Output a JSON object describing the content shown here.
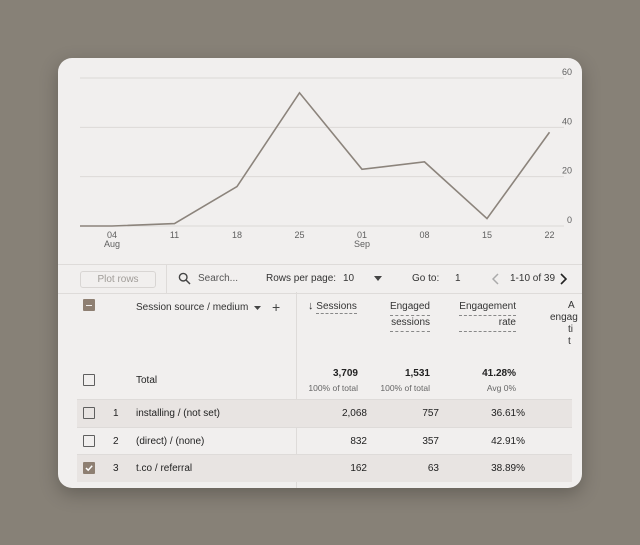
{
  "chart_data": {
    "type": "line",
    "x_ticks": [
      {
        "label": "04",
        "sub": "Aug"
      },
      {
        "label": "11",
        "sub": ""
      },
      {
        "label": "18",
        "sub": ""
      },
      {
        "label": "25",
        "sub": ""
      },
      {
        "label": "01",
        "sub": "Sep"
      },
      {
        "label": "08",
        "sub": ""
      },
      {
        "label": "15",
        "sub": ""
      },
      {
        "label": "22",
        "sub": ""
      }
    ],
    "x": [
      "Aug 04",
      "Aug 11",
      "Aug 18",
      "Aug 25",
      "Sep 01",
      "Sep 08",
      "Sep 15",
      "Sep 22"
    ],
    "values": [
      0,
      1,
      16,
      54,
      23,
      26,
      3,
      38
    ],
    "y_ticks": [
      0,
      20,
      40,
      60
    ],
    "ylim": [
      0,
      60
    ],
    "grid": true,
    "line_color": "#8c847c"
  },
  "toolbar": {
    "plot_rows_label": "Plot rows",
    "search_placeholder": "Search...",
    "rows_per_page_label": "Rows per page:",
    "rows_per_page_value": "10",
    "go_to_label": "Go to:",
    "go_to_value": "1",
    "pagination_text": "1-10 of 39"
  },
  "table": {
    "dimension_header": "Session source / medium",
    "col_sessions": "Sessions",
    "col_engaged_1": "Engaged",
    "col_engaged_2": "sessions",
    "col_rate_1": "Engagement",
    "col_rate_2": "rate",
    "col_partial_1": "A",
    "col_partial_2": "engag",
    "col_partial_3": "ti",
    "col_partial_4": "t",
    "total": {
      "label": "Total",
      "sessions": "3,709",
      "sessions_sub": "100% of total",
      "engaged": "1,531",
      "engaged_sub": "100% of total",
      "rate": "41.28%",
      "rate_sub": "Avg 0%"
    },
    "rows": [
      {
        "index": "1",
        "source": "installing / (not set)",
        "sessions": "2,068",
        "engaged": "757",
        "rate": "36.61%",
        "checked": false
      },
      {
        "index": "2",
        "source": "(direct) / (none)",
        "sessions": "832",
        "engaged": "357",
        "rate": "42.91%",
        "checked": false
      },
      {
        "index": "3",
        "source": "t.co / referral",
        "sessions": "162",
        "engaged": "63",
        "rate": "38.89%",
        "checked": true
      }
    ]
  },
  "colors": {
    "accent": "#8e7f72",
    "background": "#878177",
    "card": "#f1efee"
  }
}
